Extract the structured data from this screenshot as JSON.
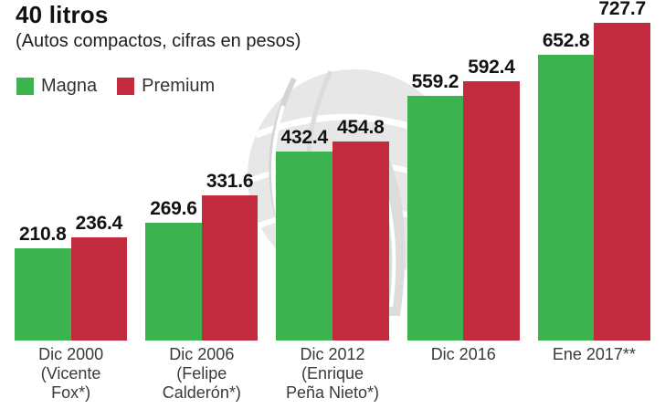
{
  "chart_data": {
    "type": "bar",
    "title": "40 litros",
    "subtitle": "(Autos compactos, cifras en pesos)",
    "categories": [
      [
        "Dic 2000",
        "(Vicente",
        "Fox*)"
      ],
      [
        "Dic 2006",
        "(Felipe",
        "Calderón*)"
      ],
      [
        "Dic 2012",
        "(Enrique",
        "Peña Nieto*)"
      ],
      [
        "Dic 2016"
      ],
      [
        "Ene 2017**"
      ]
    ],
    "series": [
      {
        "name": "Magna",
        "color": "#3cb34f",
        "values": [
          210.8,
          269.6,
          432.4,
          559.2,
          652.8
        ]
      },
      {
        "name": "Premium",
        "color": "#c22a3e",
        "values": [
          236.4,
          331.6,
          454.8,
          592.4,
          727.7
        ]
      }
    ],
    "ylim": [
      0,
      779
    ],
    "value_labels": true,
    "legend_position": "top-left",
    "grid": false,
    "watermark": "globe-logo",
    "text_color": "#121212",
    "category_label_color": "#3a3a3a"
  }
}
